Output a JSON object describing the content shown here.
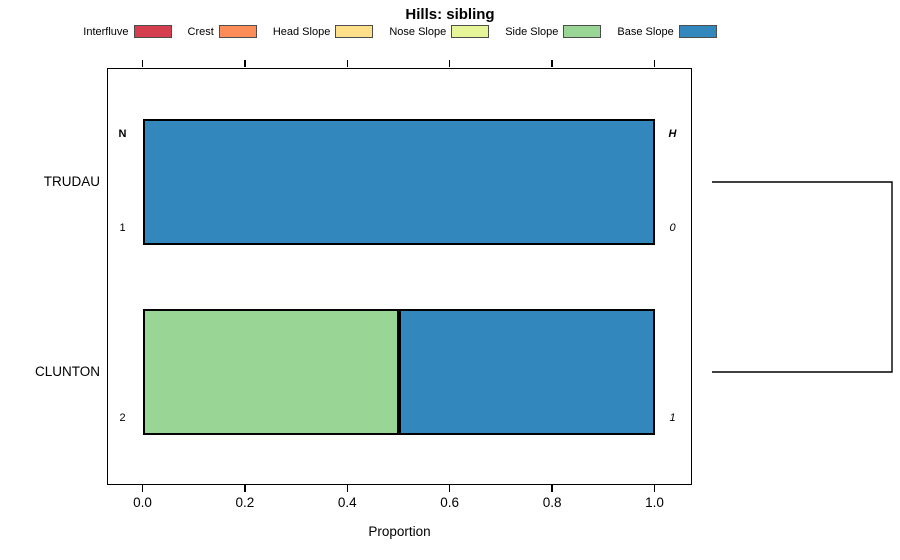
{
  "title": "Hills: sibling",
  "chart_data": {
    "type": "bar",
    "orientation": "horizontal",
    "stacked": true,
    "title": "Hills: sibling",
    "xlabel": "Proportion",
    "ylabel": "",
    "xlim": [
      0.0,
      1.0
    ],
    "xticks": [
      0.0,
      0.2,
      0.4,
      0.6,
      0.8,
      1.0
    ],
    "xtick_labels": [
      "0.0",
      "0.2",
      "0.4",
      "0.6",
      "0.8",
      "1.0"
    ],
    "grid": false,
    "legend_position": "top",
    "categories": [
      "TRUDAU",
      "CLUNTON"
    ],
    "series": [
      {
        "name": "Interfluve",
        "color": "#D53E4F",
        "values": [
          0,
          0
        ]
      },
      {
        "name": "Crest",
        "color": "#FC8D59",
        "values": [
          0,
          0
        ]
      },
      {
        "name": "Head Slope",
        "color": "#FEE08B",
        "values": [
          0,
          0
        ]
      },
      {
        "name": "Nose Slope",
        "color": "#E6F598",
        "values": [
          0,
          0
        ]
      },
      {
        "name": "Side Slope",
        "color": "#99D594",
        "values": [
          0,
          0.5
        ]
      },
      {
        "name": "Base Slope",
        "color": "#3288BD",
        "values": [
          1.0,
          0.5
        ]
      }
    ],
    "annotations": {
      "left_header": "N",
      "right_header": "H",
      "rows": [
        {
          "category": "TRUDAU",
          "n": "1",
          "h": "0"
        },
        {
          "category": "CLUNTON",
          "n": "2",
          "h": "1"
        }
      ]
    },
    "dendrogram": {
      "connects": [
        "TRUDAU",
        "CLUNTON"
      ],
      "side": "right"
    }
  }
}
